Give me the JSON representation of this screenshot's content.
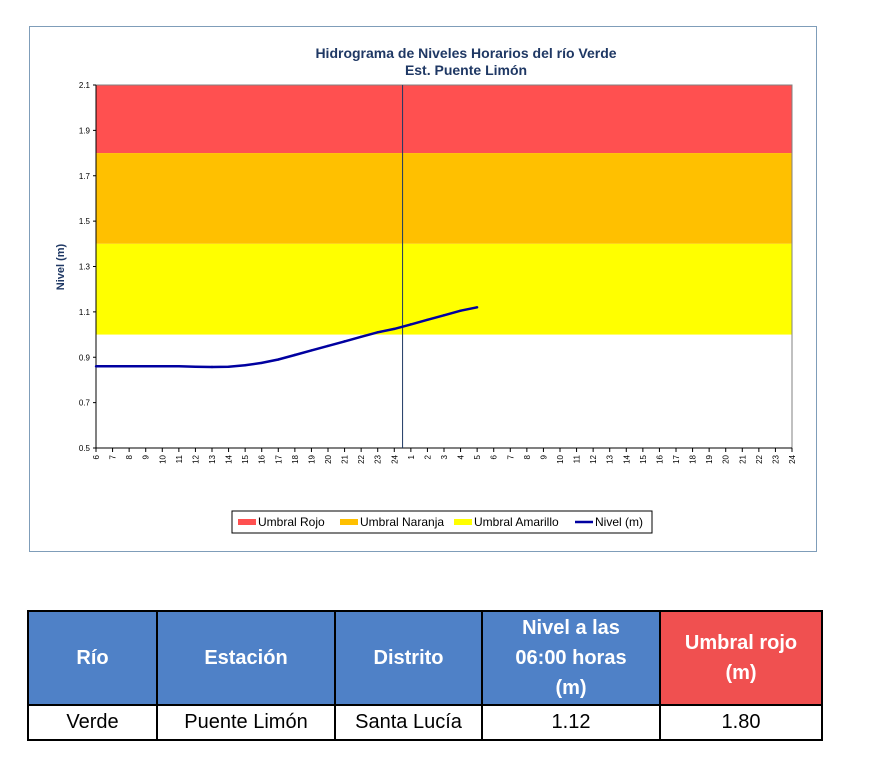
{
  "chart_data": {
    "type": "line",
    "title": "Hidrograma de Niveles Horarios del río Verde",
    "subtitle": "Est. Puente Limón",
    "ylabel": "Nivel (m)",
    "xlabel": "",
    "ylim": [
      0.5,
      2.1
    ],
    "y_ticks": [
      "0.5",
      "0.7",
      "0.9",
      "1.1",
      "1.3",
      "1.5",
      "1.7",
      "1.9",
      "2.1"
    ],
    "x_tick_labels": [
      "6",
      "7",
      "8",
      "9",
      "10",
      "11",
      "12",
      "13",
      "14",
      "15",
      "16",
      "17",
      "18",
      "19",
      "20",
      "21",
      "22",
      "23",
      "24",
      "1",
      "2",
      "3",
      "4",
      "5",
      "6",
      "7",
      "8",
      "9",
      "10",
      "11",
      "12",
      "13",
      "14",
      "15",
      "16",
      "17",
      "18",
      "19",
      "20",
      "21",
      "22",
      "23",
      "24"
    ],
    "thresholds": [
      {
        "name": "Umbral Rojo",
        "from": 1.8,
        "to": 2.1,
        "color": "#ff5050"
      },
      {
        "name": "Umbral Naranja",
        "from": 1.4,
        "to": 1.8,
        "color": "#ffc000"
      },
      {
        "name": "Umbral Amarillo",
        "from": 1.0,
        "to": 1.4,
        "color": "#ffff00"
      }
    ],
    "series": [
      {
        "name": "Nivel (m)",
        "color": "#0000a0",
        "values": [
          0.86,
          0.86,
          0.86,
          0.86,
          0.86,
          0.86,
          0.858,
          0.857,
          0.858,
          0.865,
          0.875,
          0.89,
          0.91,
          0.93,
          0.95,
          0.97,
          0.99,
          1.01,
          1.025,
          1.045,
          1.065,
          1.085,
          1.105,
          1.12
        ]
      }
    ],
    "divider_after_index": 19,
    "grid": false,
    "legend_position": "bottom"
  },
  "legend": [
    {
      "label": "Umbral Rojo",
      "color": "#ff5050",
      "kind": "box"
    },
    {
      "label": "Umbral Naranja",
      "color": "#ffc000",
      "kind": "box"
    },
    {
      "label": "Umbral Amarillo",
      "color": "#ffff00",
      "kind": "box"
    },
    {
      "label": "Nivel (m)",
      "color": "#0000a0",
      "kind": "line"
    }
  ],
  "table": {
    "headers": {
      "rio": "Río",
      "estacion": "Estación",
      "distrito": "Distrito",
      "nivel_l1": "Nivel a las",
      "nivel_l2": "06:00 horas",
      "nivel_l3": "(m)",
      "umbral_l1": "Umbral rojo",
      "umbral_l2": "(m)"
    },
    "row": {
      "rio": "Verde",
      "estacion": "Puente Limón",
      "distrito": "Santa Lucía",
      "nivel": "1.12",
      "umbral": "1.80"
    }
  }
}
